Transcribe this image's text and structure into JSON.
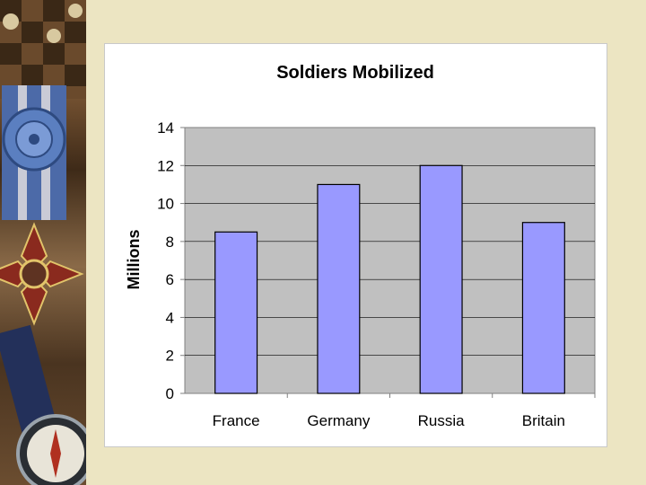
{
  "colors": {
    "background": "#ece5c2",
    "plot_area": "#c0c0c0",
    "bar_fill": "#9999ff",
    "bar_stroke": "#000000",
    "gridline": "#000000"
  },
  "chart_data": {
    "type": "bar",
    "title": "Soldiers Mobilized",
    "xlabel": "",
    "ylabel": "Millions",
    "categories": [
      "France",
      "Germany",
      "Russia",
      "Britain"
    ],
    "values": [
      8.5,
      11,
      12,
      9
    ],
    "ylim": [
      0,
      14
    ],
    "yticks": [
      0,
      2,
      4,
      6,
      8,
      10,
      12,
      14
    ],
    "grid": true,
    "legend": "none"
  }
}
